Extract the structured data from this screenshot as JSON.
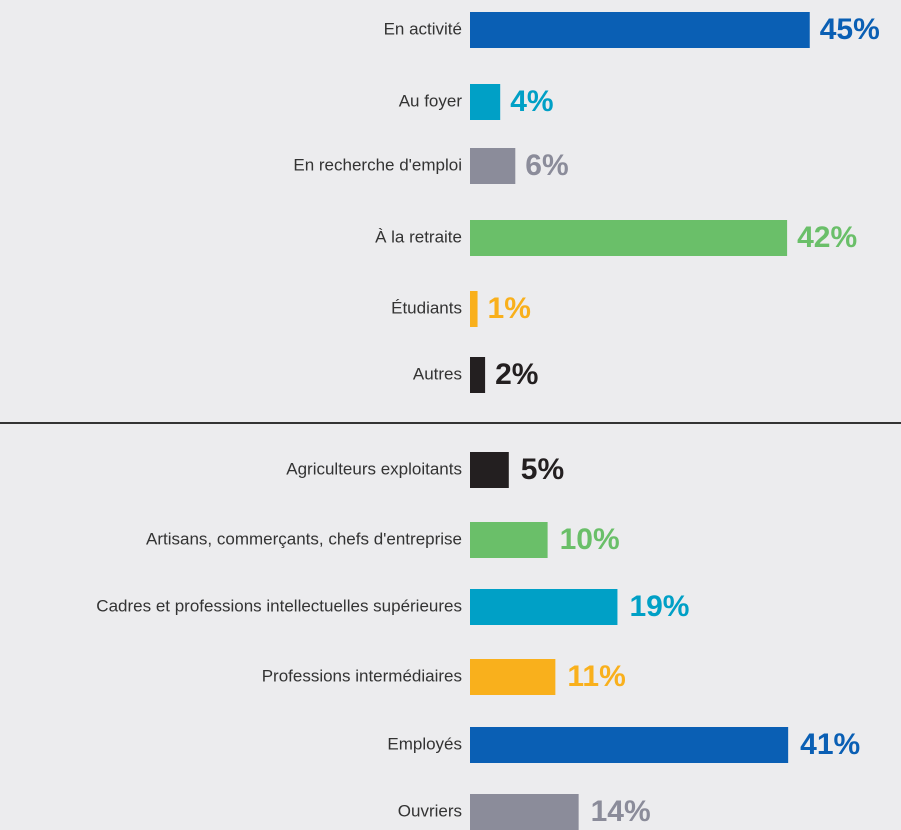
{
  "chart_data": [
    {
      "type": "bar",
      "orientation": "horizontal",
      "categories": [
        "En activité",
        "Au foyer",
        "En recherche d'emploi",
        "À la retraite",
        "Étudiants",
        "Autres"
      ],
      "values": [
        45,
        4,
        6,
        42,
        1,
        2
      ],
      "value_labels": [
        "45%",
        "4%",
        "6%",
        "42%",
        "1%",
        "2%"
      ],
      "colors": [
        "#0a5fb4",
        "#00a0c6",
        "#8b8c9a",
        "#6abf69",
        "#f9b01c",
        "#231f20"
      ]
    },
    {
      "type": "bar",
      "orientation": "horizontal",
      "categories": [
        "Agriculteurs exploitants",
        "Artisans, commerçants, chefs d'entreprise",
        "Cadres et professions intellectuelles supérieures",
        "Professions intermédiaires",
        "Employés",
        "Ouvriers"
      ],
      "values": [
        5,
        10,
        19,
        11,
        41,
        14
      ],
      "value_labels": [
        "5%",
        "10%",
        "19%",
        "11%",
        "41%",
        "14%"
      ],
      "colors": [
        "#231f20",
        "#6abf69",
        "#00a0c6",
        "#f9b01c",
        "#0a5fb4",
        "#8b8c9a"
      ]
    }
  ]
}
